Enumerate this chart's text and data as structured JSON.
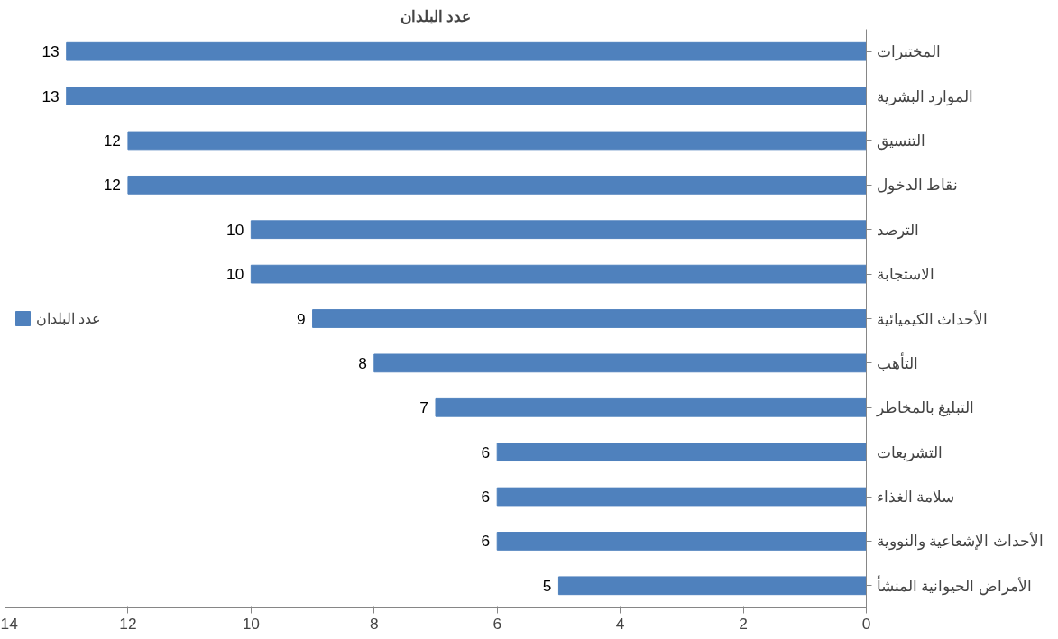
{
  "chart_data": {
    "type": "bar",
    "orientation": "horizontal",
    "title": "عدد البلدان",
    "categories": [
      "المختبرات",
      "الموارد البشرية",
      "التنسيق",
      "نقاط الدخول",
      "الترصد",
      "الاستجابة",
      "الأحداث الكيميائية",
      "التأهب",
      "التبليغ بالمخاطر",
      "التشريعات",
      "سلامة الغذاء",
      "الأحداث الإشعاعية والنووية",
      "الأمراض الحيوانية المنشأ"
    ],
    "series": [
      {
        "name": "عدد البلدان",
        "color": "#4f81bd",
        "values": [
          13,
          13,
          12,
          12,
          10,
          10,
          9,
          8,
          7,
          6,
          6,
          6,
          5
        ]
      }
    ],
    "xlim": [
      14,
      0
    ],
    "xticks": [
      0,
      2,
      4,
      6,
      8,
      10,
      12,
      14
    ],
    "grid": false,
    "legend": "left",
    "data_labels": true
  }
}
